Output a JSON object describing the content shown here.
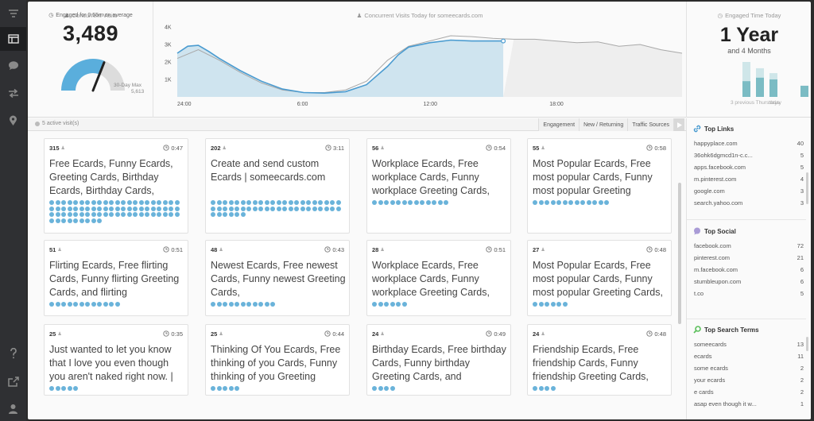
{
  "nav": {
    "items": [
      {
        "name": "logo-icon"
      },
      {
        "name": "dashboard-icon"
      },
      {
        "name": "chat-icon"
      },
      {
        "name": "arrows-icon"
      },
      {
        "name": "map-pin-icon"
      },
      {
        "name": "help-icon"
      },
      {
        "name": "share-icon"
      },
      {
        "name": "user-icon"
      }
    ]
  },
  "visits": {
    "title": "Concurrent Visits",
    "count": "3,489",
    "gauge_max_label": "30-Day Max",
    "gauge_max_value": "5,613",
    "gauge_fraction": 0.62,
    "engaged_avg": "Engaged for 0:55m on average"
  },
  "chart": {
    "title": "Concurrent Visits Today for someecards.com"
  },
  "chart_data": {
    "type": "area",
    "title": "Concurrent Visits Today for someecards.com",
    "x_ticks": [
      "24:00",
      "6:00",
      "12:00",
      "18:00"
    ],
    "y_ticks": [
      "4K",
      "3K",
      "2K",
      "1K"
    ],
    "ylim": [
      0,
      4000
    ],
    "xlim": [
      0,
      24
    ],
    "series": [
      {
        "x": [
          0,
          0.5,
          1,
          1.5,
          2,
          3,
          4,
          5,
          6,
          7,
          8,
          9,
          10,
          10.5,
          11,
          12,
          13,
          14,
          15.5
        ],
        "y": [
          2500,
          2900,
          2950,
          2600,
          2200,
          1500,
          900,
          450,
          250,
          220,
          300,
          700,
          1750,
          2400,
          2850,
          3100,
          3250,
          3200,
          3200
        ]
      },
      {
        "x": [
          0,
          1,
          2,
          3,
          4,
          5,
          6,
          7,
          8,
          9,
          10,
          11,
          12,
          13,
          14,
          15,
          16,
          17,
          18,
          19,
          20,
          21,
          22,
          23,
          24
        ],
        "y": [
          2200,
          2700,
          2100,
          1400,
          800,
          400,
          250,
          250,
          400,
          900,
          2100,
          2900,
          3200,
          3500,
          3450,
          3350,
          3300,
          3300,
          3200,
          3100,
          3150,
          2900,
          3000,
          2700,
          2500
        ]
      }
    ],
    "current_value": 3489,
    "grid": false
  },
  "engaged_time": {
    "title": "Engaged Time Today",
    "big": "1 Year",
    "sub": "and 4 Months",
    "label_prev": "3 previous Thursdays",
    "label_today": "today",
    "bars": [
      {
        "total": 1.0,
        "part": 0.45
      },
      {
        "total": 0.82,
        "part": 0.55
      },
      {
        "total": 0.68,
        "part": 0.5
      },
      {
        "total": 0.32,
        "part": 0.32
      }
    ]
  },
  "toolbar": {
    "active_visits": "5 active visit(s)",
    "tabs": [
      "Engagement",
      "New / Returning",
      "Traffic Sources"
    ]
  },
  "cards": [
    {
      "count": "315",
      "time": "0:47",
      "title": "Free Ecards, Funny Ecards, Greeting Cards, Birthday Ecards, Birthday Cards,",
      "dots": 75
    },
    {
      "count": "202",
      "time": "3:11",
      "title": "Create and send custom Ecards | someecards.com",
      "dots": 50
    },
    {
      "count": "56",
      "time": "0:54",
      "title": "Workplace Ecards, Free workplace Cards, Funny workplace Greeting Cards,",
      "dots": 13
    },
    {
      "count": "55",
      "time": "0:58",
      "title": "Most Popular Ecards, Free most popular Cards, Funny most popular Greeting",
      "dots": 13
    },
    {
      "count": "51",
      "time": "0:51",
      "title": "Flirting Ecards, Free flirting Cards, Funny flirting Greeting Cards, and flirting",
      "dots": 12
    },
    {
      "count": "48",
      "time": "0:43",
      "title": "Newest Ecards, Free newest Cards, Funny newest Greeting Cards,",
      "dots": 11
    },
    {
      "count": "28",
      "time": "0:51",
      "title": "Workplace Ecards, Free workplace Cards, Funny workplace Greeting Cards,",
      "dots": 6
    },
    {
      "count": "27",
      "time": "0:48",
      "title": "Most Popular Ecards, Free most popular Cards, Funny most popular Greeting Cards,",
      "dots": 6
    },
    {
      "count": "25",
      "time": "0:35",
      "title": "Just wanted to let you know that I love you even though you aren't naked right now. |",
      "dots": 5
    },
    {
      "count": "25",
      "time": "0:44",
      "title": "Thinking Of You Ecards, Free thinking of you Cards, Funny thinking of you Greeting",
      "dots": 5
    },
    {
      "count": "24",
      "time": "0:49",
      "title": "Birthday Ecards, Free birthday Cards, Funny birthday Greeting Cards, and",
      "dots": 4
    },
    {
      "count": "24",
      "time": "0:48",
      "title": "Friendship Ecards, Free friendship Cards, Funny friendship Greeting Cards,",
      "dots": 4
    }
  ],
  "top_links": {
    "title": "Top Links",
    "rows": [
      {
        "label": "happyplace.com",
        "value": "40"
      },
      {
        "label": "36ohk6dgmcd1n-c.c...",
        "value": "5"
      },
      {
        "label": "apps.facebook.com",
        "value": "5"
      },
      {
        "label": "m.pinterest.com",
        "value": "4"
      },
      {
        "label": "google.com",
        "value": "3"
      },
      {
        "label": "search.yahoo.com",
        "value": "3"
      }
    ]
  },
  "top_social": {
    "title": "Top Social",
    "rows": [
      {
        "label": "facebook.com",
        "value": "72"
      },
      {
        "label": "pinterest.com",
        "value": "21"
      },
      {
        "label": "m.facebook.com",
        "value": "6"
      },
      {
        "label": "stumbleupon.com",
        "value": "6"
      },
      {
        "label": "t.co",
        "value": "5"
      }
    ]
  },
  "top_search": {
    "title": "Top Search Terms",
    "rows": [
      {
        "label": "someecards",
        "value": "13"
      },
      {
        "label": "ecards",
        "value": "11"
      },
      {
        "label": "some ecards",
        "value": "2"
      },
      {
        "label": "your ecards",
        "value": "2"
      },
      {
        "label": "e cards",
        "value": "2"
      },
      {
        "label": "asap even though it w...",
        "value": "1"
      }
    ]
  },
  "colors": {
    "accent": "#4a9bd0",
    "area_fill": "#cfe4ef",
    "dot": "#6ab3da",
    "teal": "#7bbcc4",
    "teal_dark": "#4f9ea8"
  }
}
